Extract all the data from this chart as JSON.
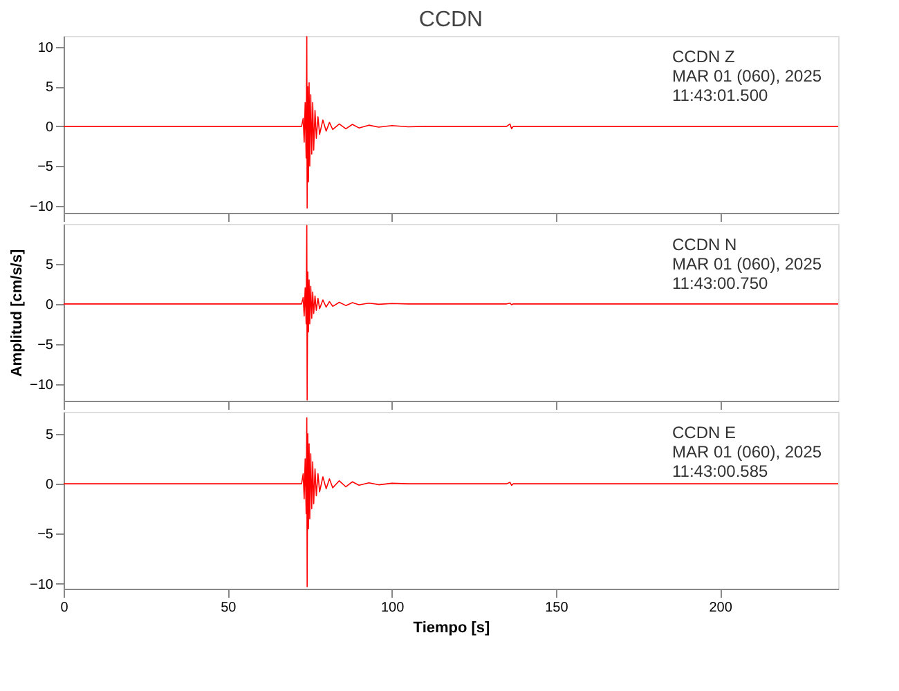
{
  "chart_data": [
    {
      "type": "line",
      "title": "CCDN",
      "annotations": [
        "CCDN   Z",
        "MAR 01 (060), 2025",
        "11:43:01.500"
      ],
      "xlim": [
        0,
        236
      ],
      "xticks": [
        0,
        50,
        100,
        150,
        200
      ],
      "ylim": [
        -10.9,
        11.4
      ],
      "yticks": [
        -10,
        -5,
        0,
        5,
        10
      ],
      "tick_labels": "y",
      "x": [
        0,
        20,
        40,
        60,
        72.5,
        73,
        73.3,
        73.6,
        73.9,
        74.1,
        74.2,
        74.4,
        74.6,
        74.8,
        75.0,
        75.3,
        75.6,
        75.9,
        76.2,
        76.6,
        77,
        77.5,
        78,
        79,
        80,
        81,
        82,
        84,
        86,
        88,
        90,
        93,
        96,
        100,
        105,
        110,
        135,
        136,
        136.5,
        137,
        160,
        200,
        236
      ],
      "series": [
        {
          "color": "#ff0000",
          "values": [
            0,
            0,
            0,
            0,
            0,
            1,
            -2,
            3,
            -4,
            11.3,
            -10.3,
            5,
            -7,
            5.5,
            -5,
            4,
            -3.5,
            3,
            -3,
            2,
            -1.5,
            1.2,
            -1,
            0.8,
            -0.6,
            0.5,
            -0.4,
            0.3,
            -0.3,
            0.25,
            -0.2,
            0.15,
            -0.1,
            0.1,
            -0.05,
            0,
            0,
            0.3,
            -0.3,
            0,
            0,
            0,
            0
          ]
        }
      ]
    },
    {
      "type": "line",
      "ylabel": "Amplitud [cm/s/s]",
      "annotations": [
        "CCDN   N",
        "MAR 01 (060), 2025",
        "11:43:00.750"
      ],
      "xlim": [
        0,
        236
      ],
      "xticks": [
        0,
        50,
        100,
        150,
        200
      ],
      "ylim": [
        -12.1,
        10
      ],
      "yticks": [
        -10,
        -5,
        0,
        5
      ],
      "tick_labels": "y",
      "x": [
        0,
        20,
        40,
        60,
        72.5,
        73,
        73.3,
        73.6,
        73.9,
        74.1,
        74.2,
        74.4,
        74.6,
        74.8,
        75.0,
        75.3,
        75.6,
        75.9,
        76.2,
        76.6,
        77,
        77.5,
        78,
        79,
        80,
        81,
        82,
        84,
        86,
        88,
        90,
        93,
        96,
        100,
        105,
        110,
        135,
        136,
        136.5,
        137,
        160,
        200,
        236
      ],
      "series": [
        {
          "color": "#ff0000",
          "values": [
            0,
            0,
            0,
            0,
            0,
            0.8,
            -1.5,
            2,
            -2.5,
            9.8,
            -12,
            4,
            -3.5,
            3,
            -2.5,
            2.2,
            -1.8,
            1.5,
            -1.2,
            1,
            -0.8,
            0.7,
            -0.6,
            0.5,
            -0.4,
            0.3,
            -0.3,
            0.2,
            -0.2,
            0.15,
            -0.1,
            0.1,
            -0.05,
            0.05,
            0,
            0,
            0,
            0.1,
            -0.1,
            0,
            0,
            0,
            0
          ]
        }
      ]
    },
    {
      "type": "line",
      "xlabel": "Tiempo [s]",
      "annotations": [
        "CCDN   E",
        "MAR 01 (060), 2025",
        "11:43:00.585"
      ],
      "xlim": [
        0,
        236
      ],
      "xticks": [
        0,
        50,
        100,
        150,
        200
      ],
      "ylim": [
        -10.5,
        7.2
      ],
      "yticks": [
        -10,
        -5,
        0,
        5
      ],
      "x": [
        0,
        20,
        40,
        60,
        72.5,
        73,
        73.3,
        73.6,
        73.9,
        74.1,
        74.2,
        74.4,
        74.6,
        74.8,
        75.0,
        75.3,
        75.6,
        75.9,
        76.2,
        76.6,
        77,
        77.5,
        78,
        79,
        80,
        81,
        82,
        84,
        86,
        88,
        90,
        93,
        96,
        100,
        105,
        110,
        135,
        136,
        136.5,
        137,
        160,
        200,
        236
      ],
      "series": [
        {
          "color": "#ff0000",
          "values": [
            0,
            0,
            0,
            0,
            0,
            1,
            -1.5,
            2.5,
            -3,
            6.6,
            -10.3,
            5,
            -4.5,
            4,
            -3.5,
            3,
            -2.5,
            2.2,
            -2,
            1.5,
            -1.2,
            1,
            -0.8,
            0.7,
            -0.5,
            0.5,
            -0.4,
            0.3,
            -0.3,
            0.2,
            -0.15,
            0.1,
            -0.1,
            0.05,
            0,
            0,
            0,
            0.15,
            -0.15,
            0,
            0,
            0,
            0
          ]
        }
      ]
    }
  ]
}
